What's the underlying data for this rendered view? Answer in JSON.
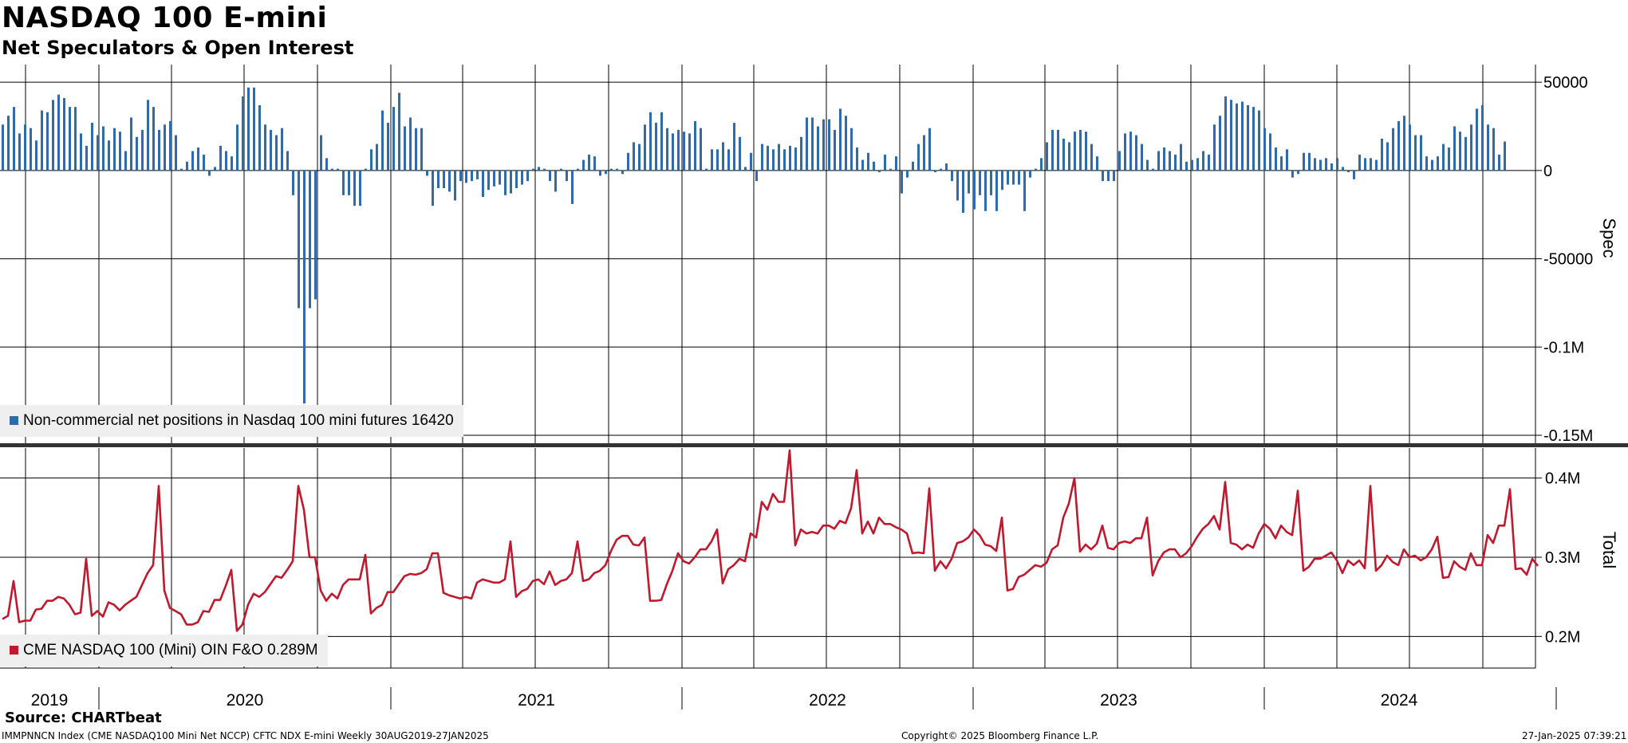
{
  "header": {
    "title": "NASDAQ 100 E-mini",
    "subtitle": "Net Speculators & Open Interest"
  },
  "footer": {
    "source": "Source: CHARTbeat",
    "index_info": "IMMPNNCN Index (CME NASDAQ100 Mini Net NCCP) CFTC NDX E-mini  Weekly 30AUG2019-27JAN2025",
    "copyright": "Copyright© 2025 Bloomberg Finance L.P.",
    "timestamp": "27-Jan-2025 07:39:21"
  },
  "colors": {
    "spec": "#2e6bab",
    "total": "#c0192e",
    "grid": "#000000",
    "legend_bg": "#efefef"
  },
  "chart_data": [
    {
      "type": "bar",
      "title": "",
      "ylabel": "Spec",
      "ylim": [
        -150000,
        50000
      ],
      "y_ticks": [
        50000,
        0,
        -50000,
        -100000,
        -150000
      ],
      "y_tick_labels": [
        "50000",
        "0",
        "-50000",
        "-0.1M",
        "-0.15M"
      ],
      "grid": true,
      "legend_position": "bottom-left",
      "legend": "Non-commercial net positions in Nasdaq 100 mini futures 16420",
      "x_start": "2019-08-30",
      "x_step": "weekly",
      "series": [
        {
          "name": "Non-commercial net positions in Nasdaq 100 mini futures",
          "color": "#2e6bab",
          "values": [
            26000,
            31000,
            36000,
            21000,
            26000,
            24000,
            17000,
            34000,
            33000,
            40000,
            43000,
            41000,
            36000,
            36000,
            21000,
            14000,
            27000,
            20000,
            25000,
            17000,
            24000,
            22000,
            11000,
            30000,
            19000,
            23000,
            40000,
            36000,
            23000,
            26000,
            28000,
            20000,
            1000,
            5000,
            11000,
            13000,
            9000,
            -3000,
            2000,
            14000,
            11000,
            8000,
            26000,
            42000,
            47000,
            47000,
            37000,
            26000,
            23000,
            20000,
            24000,
            11000,
            -14000,
            -78000,
            -132000,
            -78000,
            -73000,
            20000,
            7000,
            1000,
            1000,
            -14000,
            -14000,
            -20000,
            -20000,
            1000,
            12000,
            15000,
            34000,
            27000,
            36000,
            44000,
            25000,
            30000,
            24000,
            24000,
            -3000,
            -20000,
            -10000,
            -10000,
            -12000,
            -17000,
            -6000,
            -7000,
            -6000,
            -5000,
            -15000,
            -11000,
            -9000,
            -8000,
            -14000,
            -13000,
            -10000,
            -8000,
            -6000,
            1000,
            2000,
            1000,
            -6000,
            -12000,
            1000,
            -6000,
            -19000,
            1000,
            6000,
            9000,
            8000,
            -3000,
            -2000,
            1000,
            1000,
            -2000,
            10000,
            16000,
            15000,
            26000,
            33000,
            27000,
            33000,
            24000,
            21000,
            23000,
            22000,
            21000,
            28000,
            24000,
            1000,
            12000,
            12000,
            16000,
            12000,
            27000,
            19000,
            2000,
            10000,
            -6000,
            15000,
            14000,
            12000,
            15000,
            12000,
            14000,
            13000,
            19000,
            30000,
            30000,
            25000,
            29000,
            29000,
            23000,
            35000,
            31000,
            24000,
            13000,
            6000,
            10000,
            5000,
            -1000,
            9000,
            1000,
            8000,
            -13000,
            -4000,
            5000,
            15000,
            20000,
            24000,
            -1000,
            1000,
            4000,
            -6000,
            -17000,
            -24000,
            -13000,
            -22000,
            -14000,
            -23000,
            -14000,
            -23000,
            -11000,
            -8000,
            -8000,
            -8000,
            -23000,
            -4000,
            1000,
            7000,
            16000,
            23000,
            23000,
            18000,
            16000,
            22000,
            23000,
            22000,
            15000,
            8000,
            -6000,
            -6000,
            -6000,
            11000,
            21000,
            22000,
            20000,
            15000,
            6000,
            1000,
            11000,
            13000,
            11000,
            9000,
            15000,
            5000,
            6000,
            7000,
            11000,
            9000,
            26000,
            31000,
            42000,
            40000,
            38000,
            39000,
            37000,
            36000,
            34000,
            24000,
            21000,
            13000,
            8000,
            12000,
            -4000,
            -2000,
            10000,
            10000,
            7000,
            6000,
            7000,
            4000,
            7000,
            2000,
            -1000,
            -5000,
            9000,
            7000,
            7000,
            6000,
            18000,
            16000,
            24000,
            28000,
            31000,
            26000,
            20000,
            20000,
            8000,
            6000,
            8000,
            15000,
            13000,
            25000,
            22000,
            19000,
            26000,
            35000,
            37000,
            26000,
            24000,
            9000,
            16420
          ]
        }
      ]
    },
    {
      "type": "line",
      "title": "",
      "ylabel": "Total",
      "ylim": [
        0.15,
        0.45
      ],
      "y_ticks": [
        0.2,
        0.3,
        0.4
      ],
      "y_tick_labels": [
        "0.2M",
        "0.3M",
        "0.4M"
      ],
      "grid": true,
      "legend_position": "bottom-left",
      "legend": "CME NASDAQ 100 (Mini) OIN F&O 0.289M",
      "x_start": "2019-08-30",
      "x_step": "weekly",
      "x_tick_labels": [
        "2019",
        "2020",
        "2021",
        "2022",
        "2023",
        "2024"
      ],
      "series": [
        {
          "name": "CME NASDAQ 100 (Mini) OIN F&O",
          "color": "#c0192e",
          "values": [
            0.222,
            0.226,
            0.27,
            0.218,
            0.22,
            0.22,
            0.234,
            0.235,
            0.245,
            0.245,
            0.25,
            0.248,
            0.24,
            0.228,
            0.23,
            0.298,
            0.226,
            0.232,
            0.225,
            0.243,
            0.24,
            0.233,
            0.24,
            0.245,
            0.25,
            0.265,
            0.28,
            0.29,
            0.39,
            0.258,
            0.236,
            0.232,
            0.228,
            0.215,
            0.215,
            0.218,
            0.232,
            0.231,
            0.246,
            0.246,
            0.264,
            0.284,
            0.207,
            0.215,
            0.24,
            0.254,
            0.25,
            0.256,
            0.266,
            0.276,
            0.274,
            0.284,
            0.295,
            0.39,
            0.36,
            0.3,
            0.3,
            0.258,
            0.245,
            0.254,
            0.248,
            0.265,
            0.272,
            0.272,
            0.272,
            0.303,
            0.229,
            0.236,
            0.24,
            0.256,
            0.256,
            0.266,
            0.276,
            0.279,
            0.278,
            0.28,
            0.285,
            0.305,
            0.305,
            0.255,
            0.252,
            0.25,
            0.248,
            0.25,
            0.248,
            0.268,
            0.272,
            0.27,
            0.268,
            0.268,
            0.272,
            0.32,
            0.25,
            0.257,
            0.26,
            0.27,
            0.272,
            0.266,
            0.282,
            0.265,
            0.27,
            0.272,
            0.28,
            0.32,
            0.27,
            0.272,
            0.28,
            0.283,
            0.29,
            0.308,
            0.322,
            0.327,
            0.327,
            0.316,
            0.315,
            0.325,
            0.245,
            0.245,
            0.246,
            0.266,
            0.283,
            0.305,
            0.295,
            0.292,
            0.3,
            0.31,
            0.31,
            0.32,
            0.335,
            0.267,
            0.285,
            0.29,
            0.298,
            0.295,
            0.33,
            0.325,
            0.37,
            0.36,
            0.38,
            0.37,
            0.37,
            0.435,
            0.315,
            0.335,
            0.33,
            0.332,
            0.33,
            0.34,
            0.34,
            0.336,
            0.346,
            0.343,
            0.362,
            0.41,
            0.33,
            0.345,
            0.33,
            0.35,
            0.342,
            0.342,
            0.338,
            0.335,
            0.33,
            0.305,
            0.306,
            0.305,
            0.387,
            0.283,
            0.295,
            0.286,
            0.298,
            0.318,
            0.32,
            0.325,
            0.335,
            0.328,
            0.316,
            0.314,
            0.308,
            0.35,
            0.258,
            0.26,
            0.275,
            0.278,
            0.284,
            0.29,
            0.288,
            0.293,
            0.31,
            0.315,
            0.35,
            0.368,
            0.4,
            0.307,
            0.316,
            0.31,
            0.317,
            0.34,
            0.312,
            0.31,
            0.318,
            0.32,
            0.318,
            0.324,
            0.324,
            0.35,
            0.277,
            0.295,
            0.306,
            0.31,
            0.31,
            0.3,
            0.305,
            0.314,
            0.326,
            0.336,
            0.342,
            0.352,
            0.335,
            0.395,
            0.318,
            0.316,
            0.31,
            0.316,
            0.312,
            0.33,
            0.342,
            0.336,
            0.324,
            0.34,
            0.332,
            0.328,
            0.384,
            0.283,
            0.288,
            0.298,
            0.298,
            0.302,
            0.306,
            0.296,
            0.28,
            0.296,
            0.29,
            0.296,
            0.286,
            0.39,
            0.283,
            0.29,
            0.302,
            0.294,
            0.29,
            0.31,
            0.3,
            0.302,
            0.296,
            0.3,
            0.31,
            0.326,
            0.274,
            0.275,
            0.295,
            0.288,
            0.284,
            0.305,
            0.29,
            0.29,
            0.328,
            0.318,
            0.34,
            0.34,
            0.386,
            0.285,
            0.286,
            0.278,
            0.298,
            0.289
          ]
        }
      ]
    }
  ]
}
